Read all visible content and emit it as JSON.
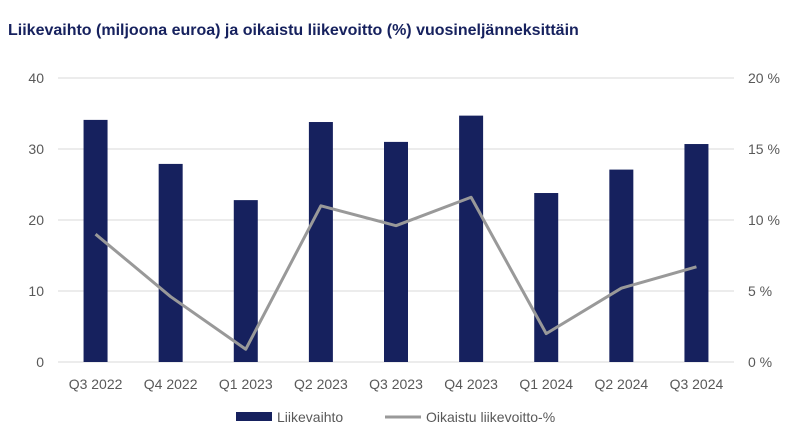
{
  "chart_data": {
    "type": "bar",
    "title": "Liikevaihto (miljoona euroa) ja oikaistu liikevoitto (%) vuosineljänneksittäin",
    "categories": [
      "Q3 2022",
      "Q4 2022",
      "Q1 2023",
      "Q2 2023",
      "Q3 2023",
      "Q4 2023",
      "Q1 2024",
      "Q2 2024",
      "Q3 2024"
    ],
    "series": [
      {
        "name": "Liikevaihto",
        "type": "bar",
        "axis": "left",
        "color": "#16215e",
        "values": [
          34.1,
          27.9,
          22.8,
          33.8,
          31.0,
          34.7,
          23.8,
          27.1,
          30.7
        ]
      },
      {
        "name": "Oikaistu liikevoitto-%",
        "type": "line",
        "axis": "right",
        "color": "#999999",
        "values": [
          9.0,
          4.6,
          0.9,
          11.0,
          9.6,
          11.6,
          2.0,
          5.2,
          6.7
        ]
      }
    ],
    "y_left": {
      "ylim": [
        0,
        40
      ],
      "ticks": [
        0,
        10,
        20,
        30,
        40
      ],
      "tick_labels": [
        "0",
        "10",
        "20",
        "30",
        "40"
      ]
    },
    "y_right": {
      "ylim": [
        0,
        20
      ],
      "ticks": [
        0,
        5,
        10,
        15,
        20
      ],
      "tick_labels": [
        "0 %",
        "5 %",
        "10 %",
        "15 %",
        "20 %"
      ]
    },
    "xlabel": "",
    "ylabel": "",
    "grid": true,
    "legend": "bottom"
  }
}
